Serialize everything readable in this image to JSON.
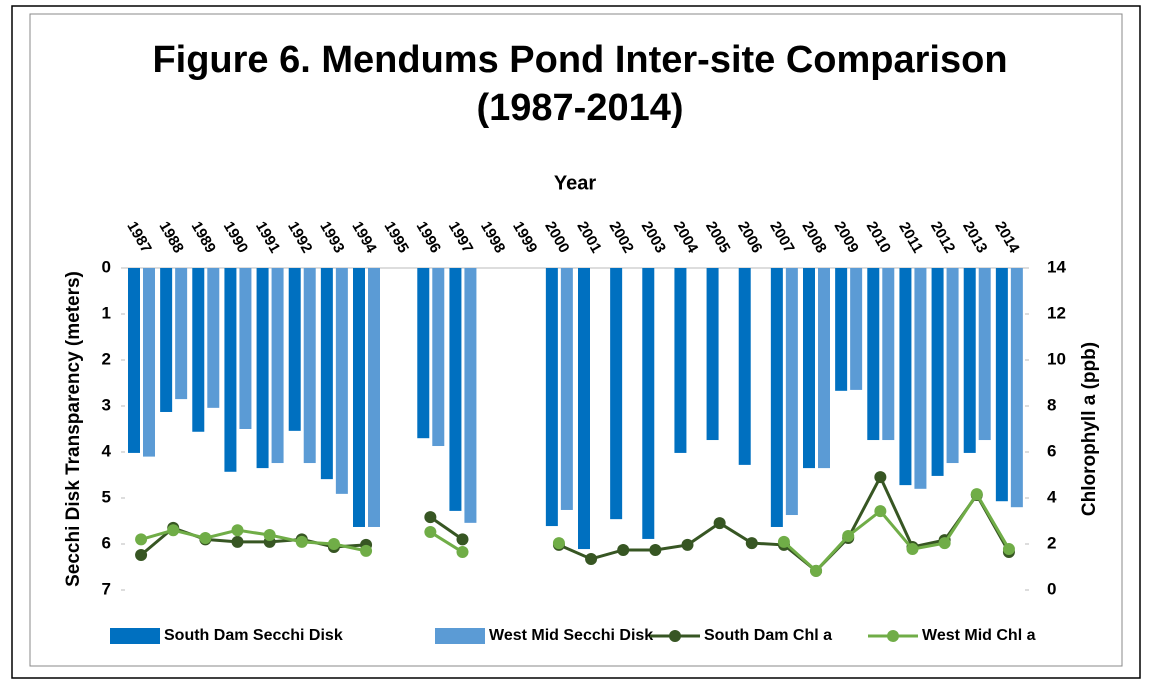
{
  "chart_data": {
    "type": "bar_line",
    "title": [
      "Figure 6. Mendums Pond Inter-site Comparison",
      "(1987-2014)"
    ],
    "x_label": "Year",
    "y_label": "Secchi Disk Transparency  (meters)",
    "y2_label": "Chlorophyll a (ppb)",
    "categories": [
      "1987",
      "1988",
      "1989",
      "1990",
      "1991",
      "1992",
      "1993",
      "1994",
      "1995",
      "1996",
      "1997",
      "1998",
      "1999",
      "2000",
      "2001",
      "2002",
      "2003",
      "2004",
      "2005",
      "2006",
      "2007",
      "2008",
      "2009",
      "2010",
      "2011",
      "2012",
      "2013",
      "2014"
    ],
    "ylim": [
      0,
      7
    ],
    "y_reversed": true,
    "yticks": [
      0,
      1,
      2,
      3,
      4,
      5,
      6,
      7
    ],
    "y2lim": [
      0,
      14
    ],
    "y2ticks": [
      0,
      2,
      4,
      6,
      8,
      10,
      12,
      14
    ],
    "series": [
      {
        "name": "South Dam Secchi Disk",
        "kind": "bar",
        "color": "#0070c0",
        "values": [
          4.02,
          3.13,
          3.56,
          4.43,
          4.35,
          3.54,
          4.59,
          5.63,
          null,
          3.7,
          5.28,
          null,
          null,
          5.61,
          6.11,
          5.46,
          5.89,
          4.02,
          3.74,
          4.28,
          5.63,
          4.35,
          2.67,
          3.74,
          4.72,
          4.52,
          4.02,
          5.07
        ]
      },
      {
        "name": "West Mid Secchi Disk",
        "kind": "bar",
        "color": "#5b9bd5",
        "values": [
          4.1,
          2.85,
          3.04,
          3.5,
          4.24,
          4.24,
          4.91,
          5.63,
          null,
          3.87,
          5.54,
          null,
          null,
          5.26,
          null,
          null,
          null,
          null,
          null,
          null,
          5.37,
          4.35,
          2.65,
          3.74,
          4.8,
          4.24,
          3.74,
          5.2
        ]
      },
      {
        "name": "South Dam Chl a",
        "kind": "line",
        "axis": "y2",
        "color": "#375623",
        "values": [
          1.52,
          2.7,
          2.2,
          2.09,
          2.09,
          2.2,
          1.87,
          1.96,
          null,
          3.17,
          2.2,
          null,
          null,
          1.96,
          1.35,
          1.74,
          1.74,
          1.96,
          2.91,
          2.04,
          1.96,
          0.83,
          2.26,
          4.91,
          1.87,
          2.17,
          4.13,
          1.65
        ]
      },
      {
        "name": "West Mid Chl a",
        "kind": "line",
        "axis": "y2",
        "color": "#70ad47",
        "values": [
          2.2,
          2.6,
          2.26,
          2.6,
          2.39,
          2.09,
          2.0,
          1.7,
          null,
          2.52,
          1.65,
          null,
          null,
          2.04,
          null,
          null,
          null,
          null,
          null,
          null,
          2.09,
          0.83,
          2.35,
          3.43,
          1.78,
          2.04,
          4.17,
          1.78
        ]
      }
    ]
  }
}
